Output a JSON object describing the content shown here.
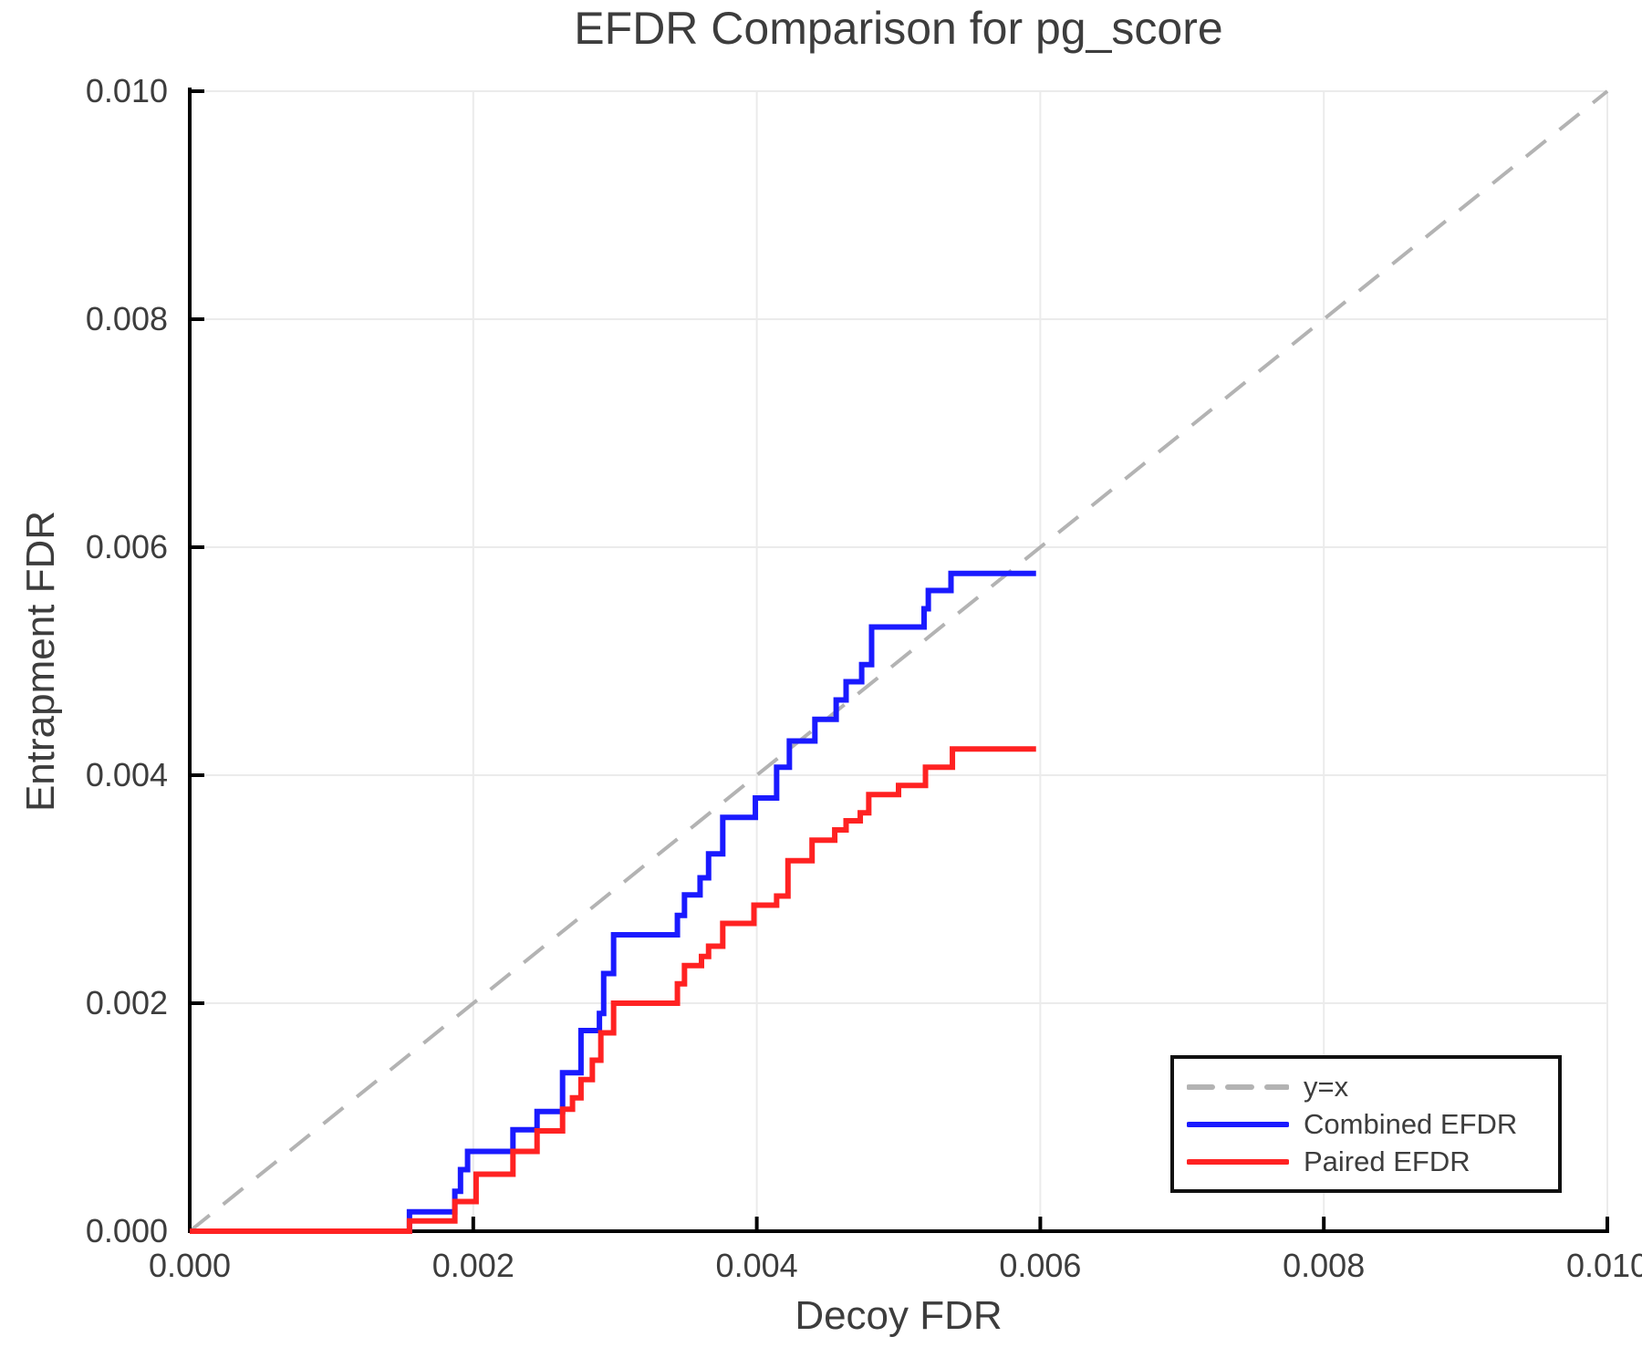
{
  "chart_data": {
    "type": "line",
    "title": "EFDR Comparison for pg_score",
    "xlabel": "Decoy FDR",
    "ylabel": "Entrapment FDR",
    "xlim": [
      0.0,
      0.01
    ],
    "ylim": [
      0.0,
      0.01
    ],
    "x_ticks": [
      0.0,
      0.002,
      0.004,
      0.006,
      0.008,
      0.01
    ],
    "x_tick_labels": [
      "0.000",
      "0.002",
      "0.004",
      "0.006",
      "0.008",
      "0.010"
    ],
    "y_ticks": [
      0.0,
      0.002,
      0.004,
      0.006,
      0.008,
      0.01
    ],
    "y_tick_labels": [
      "0.000",
      "0.002",
      "0.004",
      "0.006",
      "0.008",
      "0.010"
    ],
    "grid": true,
    "legend_position": "lower right",
    "colors": {
      "diagonal": "#b3b3b3",
      "combined": "#1a1aff",
      "paired": "#ff2222",
      "gridline": "#ebebeb",
      "axis": "#000000",
      "text": "#3d3d3d"
    },
    "series": [
      {
        "name": "y=x",
        "kind": "diagonal",
        "style": "dashed",
        "color": "#b3b3b3",
        "points": [
          [
            0.0,
            0.0
          ],
          [
            0.01,
            0.01
          ]
        ]
      },
      {
        "name": "Combined EFDR",
        "kind": "step",
        "style": "solid",
        "color": "#1a1aff",
        "start": [
          0.0,
          0.0
        ],
        "steps": [
          [
            0.00155,
            0.00017
          ],
          [
            0.00187,
            0.00035
          ],
          [
            0.00191,
            0.00054
          ],
          [
            0.00196,
            0.0007
          ],
          [
            0.00228,
            0.00089
          ],
          [
            0.00245,
            0.00105
          ],
          [
            0.00263,
            0.00139
          ],
          [
            0.00276,
            0.00176
          ],
          [
            0.00289,
            0.00191
          ],
          [
            0.00292,
            0.00226
          ],
          [
            0.00299,
            0.0026
          ],
          [
            0.00344,
            0.00277
          ],
          [
            0.00349,
            0.00295
          ],
          [
            0.0036,
            0.0031
          ],
          [
            0.00366,
            0.00331
          ],
          [
            0.00376,
            0.00363
          ],
          [
            0.00399,
            0.0038
          ],
          [
            0.00414,
            0.00407
          ],
          [
            0.00423,
            0.0043
          ],
          [
            0.00441,
            0.00449
          ],
          [
            0.00456,
            0.00466
          ],
          [
            0.00463,
            0.00482
          ],
          [
            0.00474,
            0.00497
          ],
          [
            0.00481,
            0.0053
          ],
          [
            0.00518,
            0.00546
          ],
          [
            0.00521,
            0.00562
          ],
          [
            0.00537,
            0.00577
          ]
        ],
        "end_x": 0.00597
      },
      {
        "name": "Paired EFDR",
        "kind": "step",
        "style": "solid",
        "color": "#ff2222",
        "start": [
          0.0,
          0.0
        ],
        "steps": [
          [
            0.00155,
            9e-05
          ],
          [
            0.00187,
            0.00026
          ],
          [
            0.00202,
            0.0005
          ],
          [
            0.00228,
            0.0007
          ],
          [
            0.00245,
            0.00088
          ],
          [
            0.00263,
            0.00107
          ],
          [
            0.0027,
            0.00117
          ],
          [
            0.00276,
            0.00133
          ],
          [
            0.00284,
            0.0015
          ],
          [
            0.0029,
            0.00174
          ],
          [
            0.00299,
            0.002
          ],
          [
            0.00344,
            0.00217
          ],
          [
            0.00349,
            0.00233
          ],
          [
            0.00361,
            0.00241
          ],
          [
            0.00366,
            0.0025
          ],
          [
            0.00376,
            0.0027
          ],
          [
            0.00398,
            0.00286
          ],
          [
            0.00414,
            0.00294
          ],
          [
            0.00422,
            0.00325
          ],
          [
            0.00439,
            0.00343
          ],
          [
            0.00455,
            0.00352
          ],
          [
            0.00463,
            0.0036
          ],
          [
            0.00473,
            0.00367
          ],
          [
            0.00479,
            0.00383
          ],
          [
            0.005,
            0.00391
          ],
          [
            0.00519,
            0.00407
          ],
          [
            0.00538,
            0.00423
          ]
        ],
        "end_x": 0.00597
      }
    ]
  }
}
